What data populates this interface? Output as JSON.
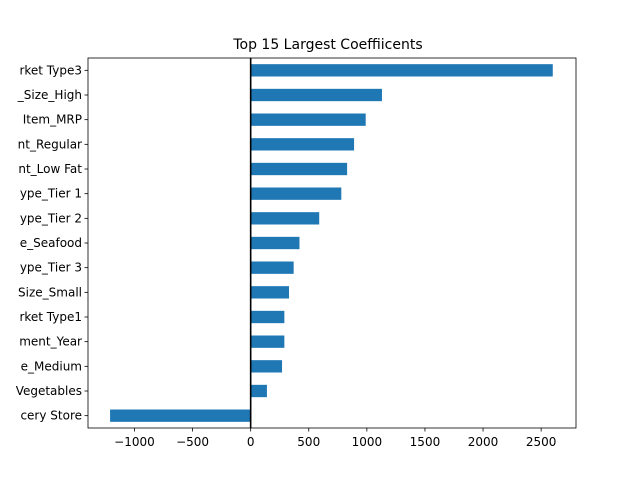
{
  "chart_data": {
    "type": "bar",
    "orientation": "horizontal",
    "title": "Top 15 Largest Coeffiicents",
    "xlabel": "",
    "ylabel": "",
    "xlim": [
      -1400,
      2800
    ],
    "x_ticks": [
      -1000,
      -500,
      0,
      500,
      1000,
      1500,
      2000,
      2500
    ],
    "x_tick_labels": [
      "−1000",
      "−500",
      "0",
      "500",
      "1000",
      "1500",
      "2000",
      "2500"
    ],
    "categories": [
      "rket Type3",
      "_Size_High",
      "Item_MRP",
      "nt_Regular",
      "nt_Low Fat",
      "ype_Tier 1",
      "ype_Tier 2",
      "e_Seafood",
      "ype_Tier 3",
      "Size_Small",
      "rket Type1",
      "ment_Year",
      "e_Medium",
      "Vegetables",
      "cery Store"
    ],
    "values": [
      2600,
      1130,
      990,
      890,
      830,
      780,
      590,
      420,
      370,
      330,
      290,
      290,
      270,
      140,
      -1210
    ],
    "bar_color": "#1f77b4",
    "zero_line": true,
    "grid": false
  }
}
